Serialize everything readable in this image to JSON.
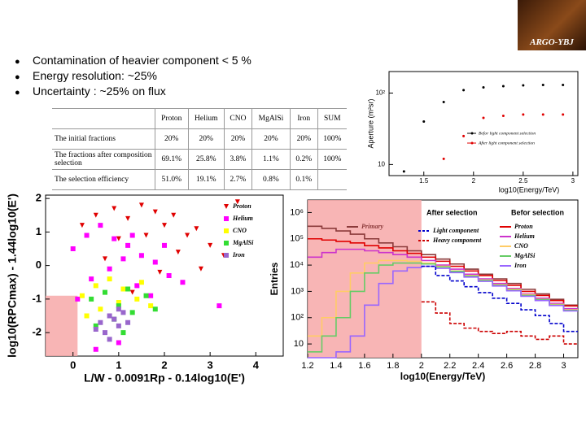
{
  "logo": "ARGO-YBJ",
  "bullets": [
    "Contamination of heavier component < 5 %",
    "Energy resolution: ~25%",
    "Uncertainty : ~25% on flux"
  ],
  "table": {
    "header": [
      "Proton",
      "Helium",
      "CNO",
      "MgAlSi",
      "Iron",
      "SUM"
    ],
    "rows": [
      [
        "The initial fractions",
        "20%",
        "20%",
        "20%",
        "20%",
        "20%",
        "100%"
      ],
      [
        "The fractions after composition selection",
        "69.1%",
        "25.8%",
        "3.8%",
        "1.1%",
        "0.2%",
        "100%"
      ],
      [
        "The selection efficiency",
        "51.0%",
        "19.1%",
        "2.7%",
        "0.8%",
        "0.1%"
      ]
    ]
  },
  "chart_data": [
    {
      "type": "scatter",
      "x_label": "log10(Energy/TeV)",
      "y_label": "Aperture (m²sr)",
      "xlim": [
        1.15,
        3.05
      ],
      "xticks": [
        1.5,
        2,
        2.5,
        3
      ],
      "ylim": [
        7,
        200
      ],
      "ylog": true,
      "yticks": [
        10,
        {
          "value": 100,
          "label": "10²"
        }
      ],
      "legend": "lower right",
      "series": [
        {
          "name": "Befor light component selection",
          "color": "#000000",
          "marker": "dot",
          "x": [
            1.3,
            1.5,
            1.7,
            1.9,
            2.1,
            2.3,
            2.5,
            2.7,
            2.9
          ],
          "values": [
            8,
            40,
            75,
            110,
            120,
            125,
            128,
            130,
            130
          ]
        },
        {
          "name": "After light component selection",
          "color": "#e00000",
          "marker": "dot",
          "x": [
            1.7,
            1.9,
            2.1,
            2.3,
            2.5,
            2.7,
            2.9
          ],
          "values": [
            12,
            25,
            45,
            48,
            50,
            50,
            50
          ]
        }
      ]
    },
    {
      "type": "scatter",
      "x_label": "L/W - 0.0091Rp - 0.14log10(E')",
      "y_label": "log10(RPCmax) - 1.44log10(E')",
      "xlim": [
        -0.6,
        4.6
      ],
      "xticks": [
        0,
        1,
        2,
        3,
        4
      ],
      "ylim": [
        -2.7,
        2.1
      ],
      "yticks": [
        -2,
        -1,
        0,
        1,
        2
      ],
      "shaded_region": {
        "xlim": [
          -0.6,
          0.1
        ],
        "ylim": [
          -2.7,
          -0.9
        ]
      },
      "legend": "upper right",
      "series": [
        {
          "name": "Proton",
          "color": "#e00000",
          "marker": "triangle",
          "x": [
            0.2,
            0.5,
            0.9,
            1.2,
            1.5,
            1.8,
            2.0,
            2.2,
            2.5,
            2.7,
            3.0,
            3.3,
            1.0,
            1.6,
            2.3,
            0.7,
            1.9,
            2.8,
            3.6,
            1.3
          ],
          "values": [
            1.2,
            1.5,
            1.7,
            1.4,
            1.8,
            1.6,
            1.2,
            1.5,
            0.9,
            1.1,
            0.6,
            0.3,
            0.8,
            0.9,
            0.4,
            0.2,
            -0.2,
            -0.1,
            1.9,
            -0.8
          ]
        },
        {
          "name": "Helium",
          "color": "#ff00ff",
          "marker": "square",
          "x": [
            0.0,
            0.3,
            0.6,
            0.9,
            1.2,
            1.5,
            1.8,
            2.1,
            0.4,
            0.8,
            1.1,
            1.4,
            1.7,
            2.4,
            3.2,
            0.1,
            1.0,
            1.3,
            0.5,
            2.0
          ],
          "values": [
            0.5,
            0.9,
            1.2,
            0.8,
            0.6,
            0.3,
            0.1,
            -0.3,
            -0.4,
            -0.1,
            0.2,
            -0.6,
            -0.9,
            -0.5,
            -1.2,
            -1.0,
            -2.3,
            0.9,
            -2.5,
            0.6
          ]
        },
        {
          "name": "CNO",
          "color": "#ffff00",
          "marker": "square",
          "x": [
            0.2,
            0.5,
            0.8,
            1.1,
            1.4,
            0.6,
            1.0,
            1.5,
            0.3,
            1.7
          ],
          "values": [
            -0.9,
            -0.6,
            -0.4,
            -0.7,
            -1.0,
            -1.3,
            -1.1,
            -0.5,
            -1.5,
            -1.2
          ]
        },
        {
          "name": "MgAlSi",
          "color": "#33dd33",
          "marker": "square",
          "x": [
            0.4,
            0.7,
            1.0,
            1.3,
            1.6,
            0.9,
            1.2,
            1.8,
            0.5,
            1.1
          ],
          "values": [
            -1.0,
            -0.8,
            -1.2,
            -1.4,
            -0.9,
            -1.6,
            -0.7,
            -1.3,
            -1.8,
            -2.0
          ]
        },
        {
          "name": "Iron",
          "color": "#9966cc",
          "marker": "square",
          "x": [
            0.6,
            0.8,
            1.0,
            0.7,
            0.9,
            1.1,
            0.5,
            1.2,
            0.8,
            1.0
          ],
          "values": [
            -1.7,
            -1.5,
            -1.8,
            -2.0,
            -1.6,
            -1.4,
            -1.9,
            -1.7,
            -2.2,
            -1.3
          ]
        }
      ]
    },
    {
      "type": "histogram",
      "x_label": "log10(Energy/TeV)",
      "y_label": "Entries",
      "legend_headers": [
        "After selection",
        "Befor selection"
      ],
      "bins": [
        1.2,
        1.3,
        1.4,
        1.5,
        1.6,
        1.7,
        1.8,
        1.9,
        2.0,
        2.1,
        2.2,
        2.3,
        2.4,
        2.5,
        2.6,
        2.7,
        2.8,
        2.9,
        3.0,
        3.1
      ],
      "xlim": [
        1.2,
        3.1
      ],
      "xticks": [
        1.2,
        1.4,
        1.6,
        1.8,
        2,
        2.2,
        2.4,
        2.6,
        2.8,
        3
      ],
      "ylim": [
        3,
        3000000
      ],
      "ylog": true,
      "yticks": [
        10,
        {
          "value": 100,
          "label": "10²"
        },
        {
          "value": 1000,
          "label": "10³"
        },
        {
          "value": 10000,
          "label": "10⁴"
        },
        {
          "value": 100000,
          "label": "10⁵"
        },
        {
          "value": 1000000,
          "label": "10⁶"
        }
      ],
      "shaded_region": {
        "xlim": [
          1.2,
          2.0
        ],
        "ylim": [
          3,
          3000000
        ]
      },
      "series": [
        {
          "name": "Primary",
          "color": "#8b3a3a",
          "values": [
            300000,
            250000,
            200000,
            150000,
            100000,
            70000,
            50000,
            35000,
            25000,
            17000,
            11000,
            7000,
            4500,
            3000,
            2000,
            1200,
            800,
            500,
            300
          ]
        },
        {
          "name": "Proton",
          "color": "#e00000",
          "values": [
            100000,
            90000,
            80000,
            70000,
            55000,
            45000,
            35000,
            28000,
            20000,
            14000,
            9000,
            6000,
            4000,
            2600,
            1700,
            1000,
            700,
            450,
            280
          ]
        },
        {
          "name": "Helium",
          "color": "#cc33cc",
          "values": [
            20000,
            30000,
            40000,
            40000,
            35000,
            30000,
            25000,
            20000,
            15000,
            10000,
            7000,
            4500,
            3000,
            2000,
            1300,
            800,
            550,
            350,
            220
          ]
        },
        {
          "name": "CNO",
          "color": "#ffcc66",
          "values": [
            20,
            100,
            1000,
            5000,
            12000,
            15000,
            15000,
            14000,
            12000,
            9000,
            6000,
            4000,
            2700,
            1800,
            1200,
            750,
            500,
            320,
            200
          ]
        },
        {
          "name": "MgAlSi",
          "color": "#66cc66",
          "values": [
            5,
            20,
            100,
            1000,
            5000,
            10000,
            12000,
            12000,
            11000,
            8500,
            5800,
            3800,
            2600,
            1700,
            1100,
            700,
            480,
            300,
            190
          ]
        },
        {
          "name": "Iron",
          "color": "#9966ff",
          "values": [
            3,
            3,
            5,
            20,
            300,
            2000,
            6000,
            8000,
            9000,
            7500,
            5200,
            3500,
            2400,
            1600,
            1050,
            650,
            450,
            290,
            180
          ]
        },
        {
          "name": "Light component",
          "color": "#0000cc",
          "dash": true,
          "values": [
            null,
            null,
            null,
            null,
            null,
            null,
            null,
            null,
            9000,
            4000,
            2500,
            1500,
            900,
            550,
            350,
            200,
            120,
            60,
            30
          ]
        },
        {
          "name": "Heavy component",
          "color": "#cc0000",
          "dash": true,
          "values": [
            null,
            null,
            null,
            null,
            null,
            null,
            null,
            null,
            400,
            150,
            60,
            40,
            30,
            25,
            30,
            20,
            15,
            20,
            10
          ]
        }
      ]
    }
  ]
}
